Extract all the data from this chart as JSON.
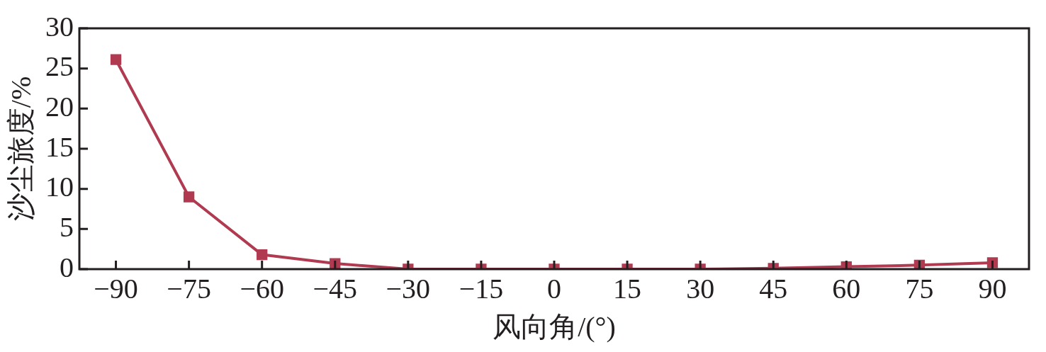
{
  "chart_data": {
    "type": "line",
    "xlabel": "风向角/(°)",
    "ylabel": "沙尘旅度/%",
    "x": [
      -90,
      -75,
      -60,
      -45,
      -30,
      -15,
      0,
      15,
      30,
      45,
      60,
      75,
      90
    ],
    "series": [
      {
        "color": "#b03a50",
        "values": [
          26.1,
          9.0,
          1.8,
          0.7,
          0,
          0,
          0,
          0,
          0,
          0.1,
          0.3,
          0.5,
          0.8
        ]
      }
    ],
    "xlim": [
      -97.5,
      97.5
    ],
    "xticks": [
      -90,
      -75,
      -60,
      -45,
      -30,
      -15,
      0,
      15,
      30,
      45,
      60,
      75,
      90
    ],
    "ylim": [
      0,
      30
    ],
    "yticks": [
      0,
      5,
      10,
      15,
      20,
      25,
      30
    ],
    "marker": "square",
    "line_style": "solid",
    "grid": false,
    "legend": false
  }
}
